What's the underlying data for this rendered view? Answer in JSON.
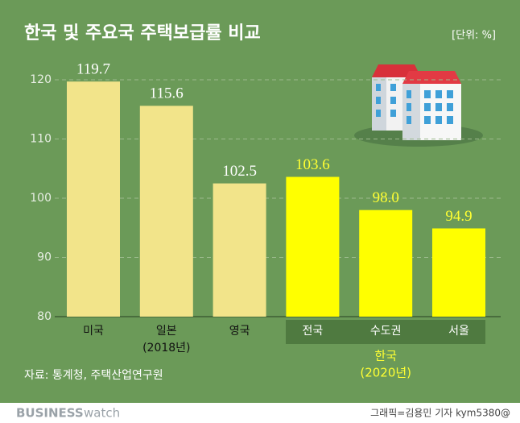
{
  "chart_data": {
    "type": "bar",
    "title": "한국 및 주요국 주택보급률 비교",
    "unit": "[단위: %]",
    "categories": [
      "미국",
      "일본",
      "영국",
      "전국",
      "수도권",
      "서울"
    ],
    "category_sublabels": [
      null,
      "(2018년)",
      null,
      null,
      null,
      null
    ],
    "values": [
      119.7,
      115.6,
      102.5,
      103.6,
      98.0,
      94.9
    ],
    "value_labels": [
      "119.7",
      "115.6",
      "102.5",
      "103.6",
      "98.0",
      "94.9"
    ],
    "colors": [
      "#f2e48a",
      "#f2e48a",
      "#f2e48a",
      "#ffff00",
      "#ffff00",
      "#ffff00"
    ],
    "label_colors": [
      "#ffffff",
      "#ffffff",
      "#ffffff",
      "#ffff33",
      "#ffff33",
      "#ffff33"
    ],
    "group": {
      "label": "한국",
      "note": "(2020년)",
      "members": [
        3,
        4,
        5
      ]
    },
    "ylim": [
      80,
      120
    ],
    "yticks": [
      80,
      90,
      100,
      110,
      120
    ],
    "grid": true,
    "source": "자료: 통계청, 주택산업연구원",
    "brand": {
      "bold": "BUSINESS",
      "light": "watch"
    },
    "credit": "그래픽=김용민 기자 kym5380@"
  }
}
